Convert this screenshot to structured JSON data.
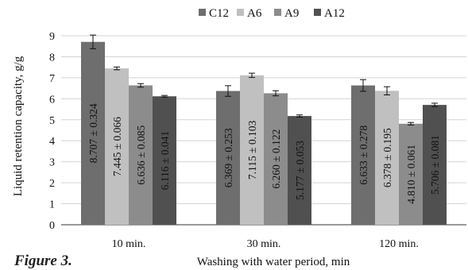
{
  "figure_caption": "Figure 3.",
  "chart_data": {
    "type": "bar",
    "title": "",
    "xlabel": "Washing with water period, min",
    "ylabel": "Liquid retention capacity, g/g",
    "ylim": [
      0,
      9
    ],
    "yticks": [
      "0",
      "1",
      "2",
      "3",
      "4",
      "5",
      "6",
      "7",
      "8",
      "9"
    ],
    "grid": true,
    "legend_position": "top",
    "categories": [
      "10 min.",
      "30 min.",
      "120 min."
    ],
    "series": [
      {
        "name": "C12",
        "color": "#6e6e6e",
        "values": [
          8.707,
          6.369,
          6.633
        ],
        "errors": [
          0.324,
          0.253,
          0.278
        ],
        "labels": [
          "8.707 ± 0.324",
          "6.369 ± 0.253",
          "6.633 ± 0.278"
        ]
      },
      {
        "name": "A6",
        "color": "#c0c0c0",
        "values": [
          7.445,
          7.115,
          6.378
        ],
        "errors": [
          0.066,
          0.103,
          0.195
        ],
        "labels": [
          "7.445 ± 0.066",
          "7.115 ± 0.103",
          "6.378 ± 0.195"
        ]
      },
      {
        "name": "A9",
        "color": "#8c8c8c",
        "values": [
          6.636,
          6.26,
          4.81
        ],
        "errors": [
          0.085,
          0.122,
          0.061
        ],
        "labels": [
          "6.636 ± 0.085",
          "6.260 ± 0.122",
          "4.810 ± 0.061"
        ]
      },
      {
        "name": "A12",
        "color": "#505050",
        "values": [
          6.116,
          5.177,
          5.706
        ],
        "errors": [
          0.041,
          0.053,
          0.081
        ],
        "labels": [
          "6.116 ± 0.041",
          "5.177 ± 0.053",
          "5.706 ± 0.081"
        ]
      }
    ]
  }
}
